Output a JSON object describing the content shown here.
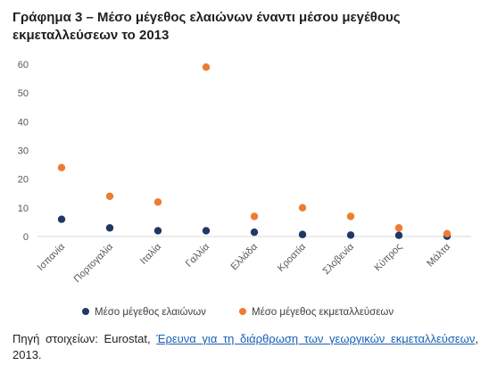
{
  "title": "Γράφημα 3 – Μέσο μέγεθος ελαιώνων έναντι μέσου μεγέθους εκμεταλλεύσεων το 2013",
  "chart_data": {
    "type": "scatter",
    "title": "",
    "xlabel": "",
    "ylabel": "",
    "ylim": [
      0,
      60
    ],
    "yticks": [
      0,
      10,
      20,
      30,
      40,
      50,
      60
    ],
    "grid": false,
    "legend_position": "bottom",
    "categories": [
      "Ισπανία",
      "Πορτογαλία",
      "Ιταλία",
      "Γαλλία",
      "Ελλάδα",
      "Κροατία",
      "Σλοβενία",
      "Κύπρος",
      "Μάλτα"
    ],
    "series": [
      {
        "name": "Μέσο μέγεθος ελαιώνων",
        "color": "#203864",
        "values": [
          6,
          3,
          2,
          2,
          1.5,
          0.7,
          0.5,
          0.4,
          0.1
        ]
      },
      {
        "name": "Μέσο μέγεθος εκμεταλλεύσεων",
        "color": "#ED7D31",
        "values": [
          24,
          14,
          12,
          59,
          7,
          10,
          7,
          3,
          1
        ]
      }
    ]
  },
  "source": {
    "prefix": "Πηγή στοιχείων: Eurostat, ",
    "link_text": "Έρευνα για τη διάρθρωση των γεωργικών εκμεταλλεύσεων",
    "suffix": ", 2013."
  }
}
